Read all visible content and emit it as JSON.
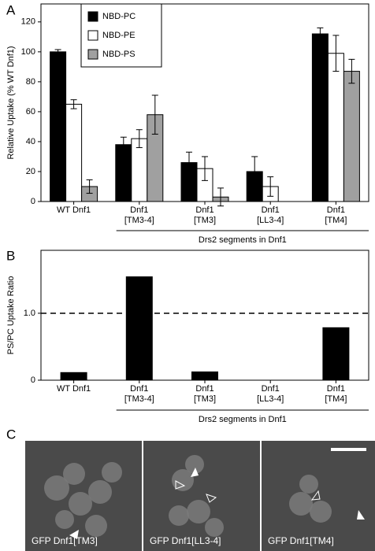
{
  "panel_labels": [
    "A",
    "B",
    "C"
  ],
  "chart_data": [
    {
      "type": "bar",
      "y_label": "Relative Uptake (% WT Dnf1)",
      "categories": [
        "WT Dnf1",
        "Dnf1\n[TM3-4]",
        "Dnf1\n[TM3]",
        "Dnf1\n[LL3-4]",
        "Dnf1\n[TM4]"
      ],
      "series": [
        {
          "name": "NBD-PC",
          "color": "#000000",
          "values": [
            100,
            38,
            26,
            20,
            112
          ],
          "errors": [
            1.5,
            5,
            7,
            10,
            4
          ]
        },
        {
          "name": "NBD-PE",
          "color": "#ffffff",
          "values": [
            65,
            42,
            22,
            10,
            99
          ],
          "errors": [
            3,
            6,
            8,
            6.5,
            12
          ]
        },
        {
          "name": "NBD-PS",
          "color": "#a0a0a0",
          "values": [
            10,
            58,
            3,
            null,
            87
          ],
          "errors": [
            4.5,
            13,
            6,
            null,
            8
          ]
        }
      ],
      "annotation": "Drs2 segments in Dnf1",
      "ylim": [
        0,
        132
      ],
      "yticks": [
        0,
        20,
        40,
        60,
        80,
        100,
        120
      ]
    },
    {
      "type": "bar",
      "y_label": "PS/PC Uptake Ratio",
      "categories": [
        "WT Dnf1",
        "Dnf1\n[TM3-4]",
        "Dnf1\n[TM3]",
        "Dnf1\n[LL3-4]",
        "Dnf1\n[TM4]"
      ],
      "values": [
        0.12,
        1.55,
        0.13,
        null,
        0.79
      ],
      "color": "#000000",
      "reference_line": {
        "value": 1,
        "label": "1.0"
      },
      "annotation": "Drs2 segments in Dnf1",
      "ylim": [
        0,
        1.94
      ],
      "yticks": [
        0,
        {
          "value": 1,
          "label": "1.0"
        }
      ]
    }
  ],
  "micrographs": [
    "GFP Dnf1[TM3]",
    "GFP Dnf1[LL3-4]",
    "GFP Dnf1[TM4]"
  ]
}
